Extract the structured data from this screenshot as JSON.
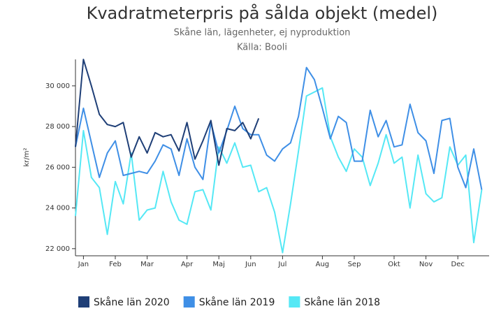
{
  "chart_data": {
    "type": "line",
    "title": "Kvadratmeterpris på sålda objekt (medel)",
    "subtitle": "Skåne län, lägenheter, ej nyproduktion",
    "source": "Källa: Booli",
    "y_label": "kr/m²",
    "categories": [
      null,
      "Jan",
      null,
      null,
      null,
      "Feb",
      null,
      null,
      null,
      "Mar",
      null,
      null,
      null,
      null,
      "Apr",
      null,
      null,
      null,
      "Maj",
      null,
      null,
      null,
      "Jun",
      null,
      null,
      null,
      "Jul",
      null,
      null,
      null,
      null,
      "Aug",
      null,
      null,
      null,
      "Sep",
      null,
      null,
      null,
      null,
      "Okt",
      null,
      null,
      null,
      "Nov",
      null,
      null,
      null,
      "Dec",
      null,
      null,
      null
    ],
    "series": [
      {
        "name": "Skåne län 2020",
        "color": "#1f3f77",
        "values": [
          27000,
          31300,
          30000,
          28600,
          28100,
          28000,
          28200,
          26500,
          27500,
          26700,
          27700,
          27500,
          27600,
          26800,
          28200,
          26400,
          27300,
          28300,
          26100,
          27900,
          27800,
          28200,
          27400,
          28400,
          null,
          null,
          null,
          null,
          null,
          null,
          null,
          null,
          null,
          null,
          null,
          null,
          null,
          null,
          null,
          null,
          null,
          null,
          null,
          null,
          null,
          null,
          null,
          null,
          null,
          null,
          null,
          null
        ]
      },
      {
        "name": "Skåne län 2019",
        "color": "#3f8fe6",
        "values": [
          27000,
          28900,
          27200,
          25500,
          26700,
          27300,
          25600,
          25700,
          25800,
          25700,
          26300,
          27100,
          26900,
          25600,
          27400,
          26000,
          25400,
          28200,
          26700,
          27800,
          29000,
          27900,
          27600,
          27600,
          26600,
          26300,
          26900,
          27200,
          28500,
          30900,
          30300,
          28900,
          27400,
          28500,
          28200,
          26300,
          26300,
          28800,
          27500,
          28300,
          27000,
          27100,
          29100,
          27700,
          27300,
          25700,
          28300,
          28400,
          26000,
          25000,
          26900,
          24900
        ]
      },
      {
        "name": "Skåne län 2018",
        "color": "#55e8f5",
        "values": [
          23600,
          27800,
          25500,
          25000,
          22700,
          25300,
          24200,
          26700,
          23400,
          23900,
          24000,
          25800,
          24300,
          23400,
          23200,
          24800,
          24900,
          23900,
          27000,
          26200,
          27200,
          26000,
          26100,
          24800,
          25000,
          23800,
          21800,
          24200,
          26800,
          29500,
          29700,
          29900,
          27500,
          26500,
          25800,
          26900,
          26500,
          25100,
          26200,
          27600,
          26200,
          26500,
          24000,
          26600,
          24700,
          24300,
          24500,
          27000,
          26100,
          26600,
          22300,
          24900
        ]
      }
    ],
    "ylim": [
      21650,
      31300
    ],
    "yticks": [
      {
        "value": 22000,
        "label": "22 000"
      },
      {
        "value": 24000,
        "label": "24 000"
      },
      {
        "value": 26000,
        "label": "26 000"
      },
      {
        "value": 28000,
        "label": "28 000"
      },
      {
        "value": 30000,
        "label": "30 000"
      }
    ],
    "grid": false
  }
}
